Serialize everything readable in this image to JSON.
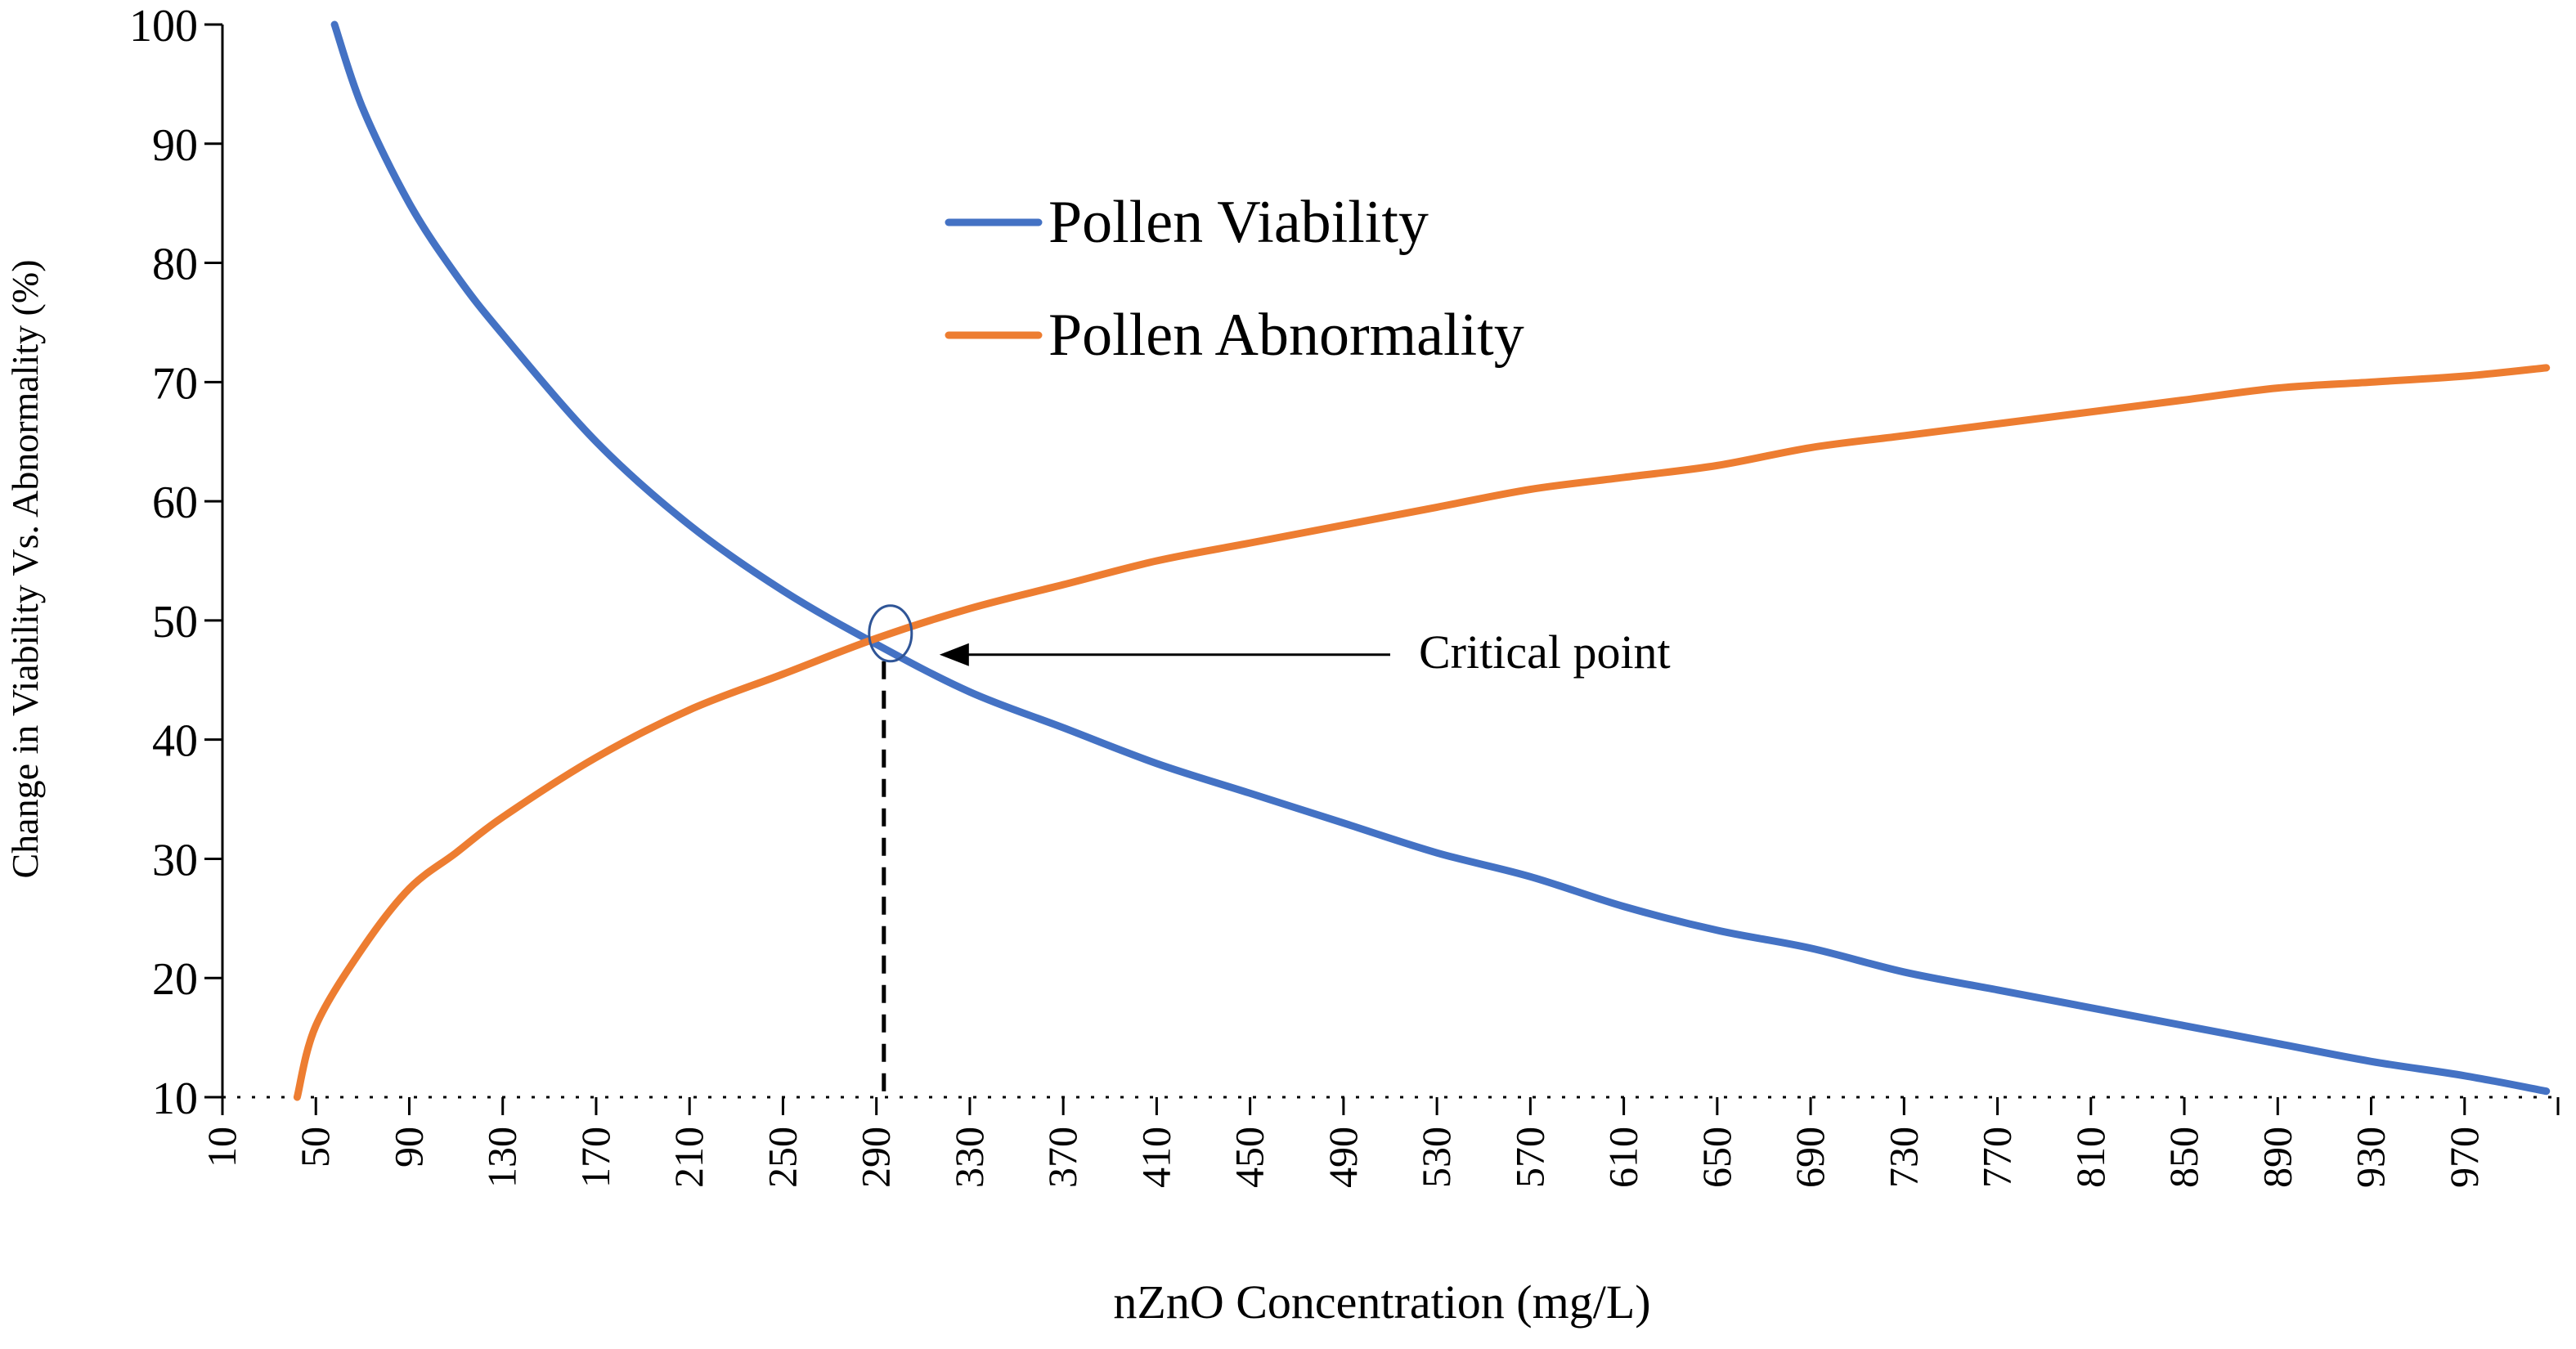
{
  "chart_data": {
    "type": "line",
    "title": "",
    "xlabel": "nZnO Concentration (mg/L)",
    "ylabel": "Change in Viability Vs. Abnormality (%)",
    "ylim": [
      10,
      100
    ],
    "xlim": [
      10,
      1010
    ],
    "y_ticks": [
      10,
      20,
      30,
      40,
      50,
      60,
      70,
      80,
      90,
      100
    ],
    "y_tick_labels": [
      "10",
      "20",
      "30",
      "40",
      "50",
      "60",
      "70",
      "80",
      "90",
      "100"
    ],
    "x_tick_labels": [
      "10",
      "50",
      "90",
      "130",
      "170",
      "210",
      "250",
      "290",
      "330",
      "370",
      "410",
      "450",
      "490",
      "530",
      "570",
      "610",
      "650",
      "690",
      "730",
      "770",
      "810",
      "850",
      "890",
      "930",
      "970"
    ],
    "x_tick_values": [
      10,
      50,
      90,
      130,
      170,
      210,
      250,
      290,
      330,
      370,
      410,
      450,
      490,
      530,
      570,
      610,
      650,
      690,
      730,
      770,
      810,
      850,
      890,
      930,
      970
    ],
    "legend_position": "upper-center",
    "series": [
      {
        "name": "Pollen Viability",
        "color": "#4472C4",
        "x": [
          58,
          70,
          90,
          110,
          130,
          170,
          210,
          250,
          290,
          330,
          370,
          410,
          450,
          490,
          530,
          570,
          610,
          650,
          690,
          730,
          770,
          810,
          850,
          890,
          930,
          970,
          1005
        ],
        "y": [
          100,
          93,
          85,
          79,
          74,
          65,
          58,
          52.5,
          48,
          44,
          41,
          38,
          35.5,
          33,
          30.5,
          28.5,
          26,
          24,
          22.5,
          20.5,
          19,
          17.5,
          16,
          14.5,
          13,
          11.8,
          10.5
        ]
      },
      {
        "name": "Pollen Abnormality",
        "color": "#ED7D31",
        "x": [
          42,
          50,
          70,
          90,
          110,
          130,
          170,
          210,
          250,
          290,
          330,
          370,
          410,
          450,
          490,
          530,
          570,
          610,
          650,
          690,
          730,
          770,
          810,
          850,
          890,
          930,
          970,
          1005
        ],
        "y": [
          10,
          16,
          22.5,
          27.5,
          30.5,
          33.5,
          38.5,
          42.5,
          45.5,
          48.5,
          51,
          53,
          55,
          56.5,
          58,
          59.5,
          61,
          62,
          63,
          64.5,
          65.5,
          66.5,
          67.5,
          68.5,
          69.5,
          70,
          70.5,
          71.2
        ]
      }
    ],
    "annotation": {
      "text": "Critical point",
      "x": 296,
      "y": 48.5
    }
  }
}
